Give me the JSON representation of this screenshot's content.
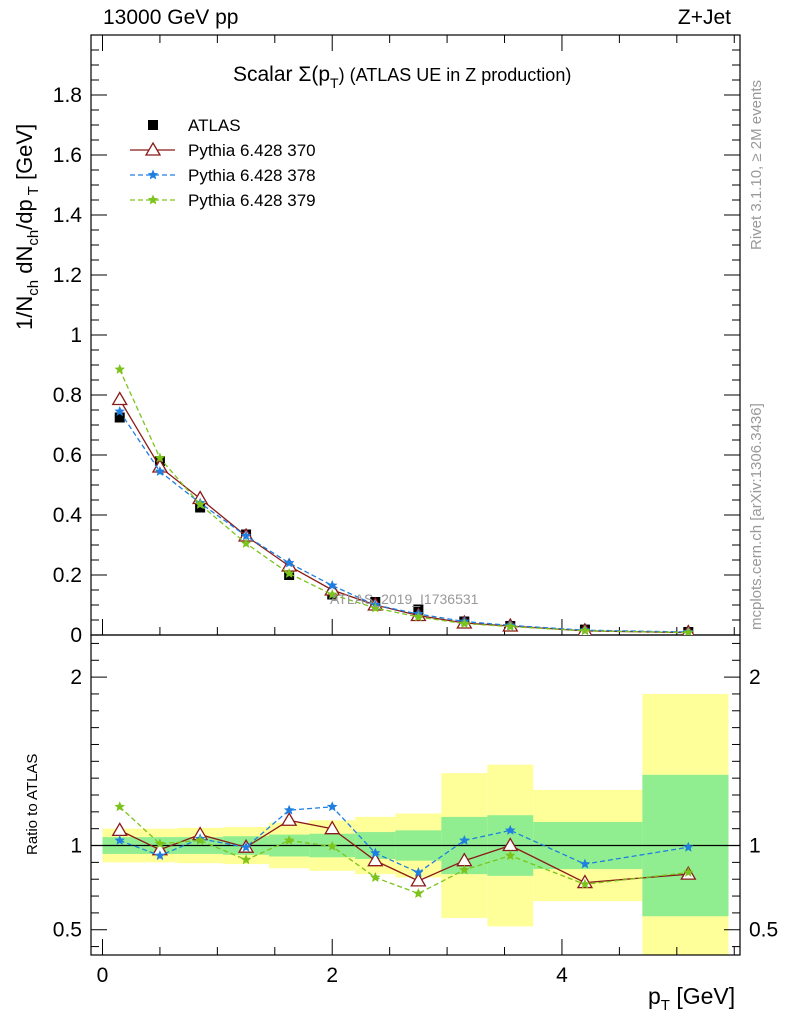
{
  "header": {
    "left": "13000 GeV pp",
    "right": "Z+Jet"
  },
  "side_labels": {
    "rivet": "Rivet 3.1.10, ≥ 2M events",
    "mcplots": "mcplots.cern.ch [arXiv:1306.3436]"
  },
  "watermark": "ATLAS_2019_I1736531",
  "chart_data": [
    {
      "type": "line",
      "title": "Scalar Σ(p_T) (ATLAS UE in Z production)",
      "title_main": "Scalar Σ(p",
      "title_sub": "T",
      "title_tail": ") (ATLAS UE in Z production)",
      "ylabel": "1/N_ch dN_ch/dp_T [GeV]",
      "ylim": [
        0,
        2.0
      ],
      "yticks": [
        0,
        0.2,
        0.4,
        0.6,
        0.8,
        1,
        1.2,
        1.4,
        1.6,
        1.8
      ],
      "ytick_labels": [
        "0",
        "0.2",
        "0.4",
        "0.6",
        "0.8",
        "1",
        "1.2",
        "1.4",
        "1.6",
        "1.8"
      ],
      "xlim": [
        -0.1,
        5.55
      ],
      "grid": false,
      "legend_position": "top-left",
      "series": [
        {
          "name": "ATLAS",
          "marker": "square",
          "color": "#000000",
          "x": [
            0.15,
            0.5,
            0.85,
            1.25,
            1.625,
            2.0,
            2.375,
            2.75,
            3.15,
            3.55,
            4.2,
            5.1
          ],
          "values": [
            0.725,
            0.58,
            0.425,
            0.335,
            0.2,
            0.135,
            0.11,
            0.085,
            0.045,
            0.03,
            0.018,
            0.01
          ]
        },
        {
          "name": "Pythia 6.428 370",
          "marker": "open-triangle",
          "color": "#8b1a1a",
          "x": [
            0.15,
            0.5,
            0.85,
            1.25,
            1.625,
            2.0,
            2.375,
            2.75,
            3.15,
            3.55,
            4.2,
            5.1
          ],
          "values": [
            0.785,
            0.56,
            0.455,
            0.33,
            0.23,
            0.15,
            0.1,
            0.065,
            0.04,
            0.03,
            0.014,
            0.008
          ]
        },
        {
          "name": "Pythia 6.428 378",
          "marker": "star",
          "color": "#1f7fe0",
          "x": [
            0.15,
            0.5,
            0.85,
            1.25,
            1.625,
            2.0,
            2.375,
            2.75,
            3.15,
            3.55,
            4.2,
            5.1
          ],
          "values": [
            0.745,
            0.545,
            0.44,
            0.33,
            0.24,
            0.165,
            0.1,
            0.07,
            0.045,
            0.032,
            0.016,
            0.01
          ]
        },
        {
          "name": "Pythia 6.428 379",
          "marker": "star",
          "color": "#7cc31c",
          "x": [
            0.15,
            0.5,
            0.85,
            1.25,
            1.625,
            2.0,
            2.375,
            2.75,
            3.15,
            3.55,
            4.2,
            5.1
          ],
          "values": [
            0.885,
            0.59,
            0.435,
            0.305,
            0.205,
            0.135,
            0.09,
            0.06,
            0.038,
            0.028,
            0.014,
            0.008
          ]
        }
      ]
    },
    {
      "type": "line",
      "ylabel": "Ratio to ATLAS",
      "xlabel": "p_T [GeV]",
      "xlabel_main": "p",
      "xlabel_sub": "T",
      "xlabel_tail": " [GeV]",
      "ylim": [
        0.35,
        2.25
      ],
      "yticks": [
        0.5,
        1,
        2
      ],
      "ytick_labels": [
        "0.5",
        "1",
        "2"
      ],
      "xlim": [
        -0.1,
        5.55
      ],
      "xticks": [
        0,
        2,
        4
      ],
      "xtick_labels": [
        "0",
        "2",
        "4"
      ],
      "reference_line": 1,
      "bands": [
        {
          "x0": 0.0,
          "x1": 0.3,
          "inner": [
            0.95,
            1.05
          ],
          "outer": [
            0.9,
            1.1
          ]
        },
        {
          "x0": 0.3,
          "x1": 0.65,
          "inner": [
            0.95,
            1.05
          ],
          "outer": [
            0.9,
            1.1
          ]
        },
        {
          "x0": 0.65,
          "x1": 1.05,
          "inner": [
            0.95,
            1.05
          ],
          "outer": [
            0.895,
            1.105
          ]
        },
        {
          "x0": 1.05,
          "x1": 1.45,
          "inner": [
            0.945,
            1.055
          ],
          "outer": [
            0.89,
            1.11
          ]
        },
        {
          "x0": 1.45,
          "x1": 1.8,
          "inner": [
            0.935,
            1.065
          ],
          "outer": [
            0.865,
            1.135
          ]
        },
        {
          "x0": 1.8,
          "x1": 2.2,
          "inner": [
            0.93,
            1.07
          ],
          "outer": [
            0.85,
            1.15
          ]
        },
        {
          "x0": 2.2,
          "x1": 2.55,
          "inner": [
            0.92,
            1.08
          ],
          "outer": [
            0.83,
            1.17
          ]
        },
        {
          "x0": 2.55,
          "x1": 2.95,
          "inner": [
            0.91,
            1.09
          ],
          "outer": [
            0.81,
            1.19
          ]
        },
        {
          "x0": 2.95,
          "x1": 3.35,
          "inner": [
            0.83,
            1.17
          ],
          "outer": [
            0.57,
            1.43
          ]
        },
        {
          "x0": 3.35,
          "x1": 3.75,
          "inner": [
            0.82,
            1.18
          ],
          "outer": [
            0.52,
            1.48
          ]
        },
        {
          "x0": 3.75,
          "x1": 4.7,
          "inner": [
            0.86,
            1.14
          ],
          "outer": [
            0.67,
            1.33
          ]
        },
        {
          "x0": 4.7,
          "x1": 5.45,
          "inner": [
            0.58,
            1.42
          ],
          "outer": [
            0.1,
            1.9
          ]
        }
      ],
      "band_colors": {
        "inner": "#90ee90",
        "outer": "#ffff99"
      },
      "series": [
        {
          "name": "Pythia 6.428 370",
          "marker": "open-triangle",
          "color": "#8b1a1a",
          "x": [
            0.15,
            0.5,
            0.85,
            1.25,
            1.625,
            2.0,
            2.375,
            2.75,
            3.15,
            3.55,
            4.2,
            5.1
          ],
          "values": [
            1.09,
            0.975,
            1.065,
            0.99,
            1.15,
            1.1,
            0.91,
            0.79,
            0.91,
            1.0,
            0.78,
            0.83
          ]
        },
        {
          "name": "Pythia 6.428 378",
          "marker": "star",
          "color": "#1f7fe0",
          "x": [
            0.15,
            0.5,
            0.85,
            1.25,
            1.625,
            2.0,
            2.375,
            2.75,
            3.15,
            3.55,
            4.2,
            5.1
          ],
          "values": [
            1.03,
            0.94,
            1.04,
            0.99,
            1.21,
            1.23,
            0.955,
            0.84,
            1.03,
            1.09,
            0.89,
            0.99
          ]
        },
        {
          "name": "Pythia 6.428 379",
          "marker": "star",
          "color": "#7cc31c",
          "x": [
            0.15,
            0.5,
            0.85,
            1.25,
            1.625,
            2.0,
            2.375,
            2.75,
            3.15,
            3.55,
            4.2,
            5.1
          ],
          "values": [
            1.23,
            1.01,
            1.03,
            0.915,
            1.03,
            0.995,
            0.81,
            0.715,
            0.855,
            0.94,
            0.77,
            0.84
          ]
        }
      ]
    }
  ]
}
